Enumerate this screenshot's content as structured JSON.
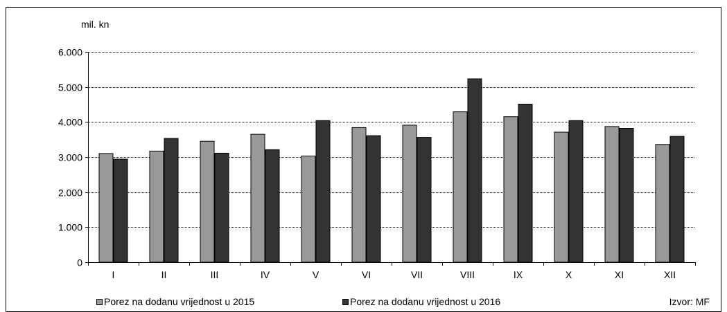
{
  "chart_data": {
    "type": "bar",
    "title": "",
    "unit_label": "mil. kn",
    "xlabel": "",
    "ylabel": "mil. kn",
    "categories": [
      "I",
      "II",
      "III",
      "IV",
      "V",
      "VI",
      "VII",
      "VIII",
      "IX",
      "X",
      "XI",
      "XII"
    ],
    "series": [
      {
        "name": "Porez na dodanu vrijednost u 2015",
        "color": "#999999",
        "values": [
          3100,
          3170,
          3450,
          3650,
          3030,
          3840,
          3910,
          4290,
          4150,
          3710,
          3870,
          3360
        ]
      },
      {
        "name": "Porez na dodanu vrijednost u 2016",
        "color": "#333333",
        "values": [
          2940,
          3530,
          3110,
          3210,
          4040,
          3610,
          3560,
          5230,
          4510,
          4040,
          3820,
          3590
        ]
      }
    ],
    "ylim": [
      0,
      6000
    ],
    "yticks": [
      "0",
      "1.000",
      "2.000",
      "3.000",
      "4.000",
      "5.000",
      "6.000"
    ],
    "grid": true,
    "legend_position": "bottom",
    "source": "Izvor: MF"
  }
}
